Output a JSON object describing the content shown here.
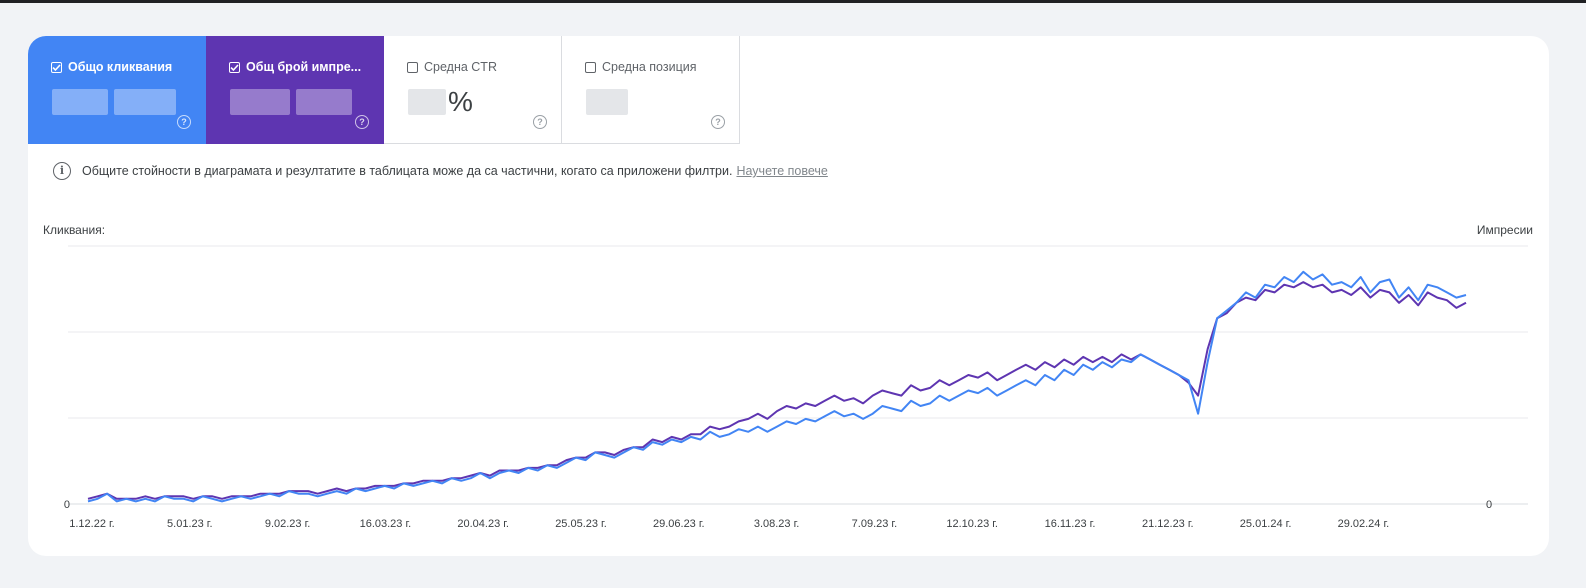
{
  "metrics": [
    {
      "label": "Общо кликвания",
      "value": "",
      "checked": true
    },
    {
      "label": "Общ брой импре...",
      "value": "",
      "checked": true
    },
    {
      "label": "Средна CTR",
      "value": "%",
      "checked": false
    },
    {
      "label": "Средна позиция",
      "value": "",
      "checked": false
    }
  ],
  "notice": {
    "text": "Общите стойности в диаграмата и резултатите в таблицата може да са частични, когато са приложени филтри.",
    "link": "Научете повече"
  },
  "colors": {
    "clicks": "#4285f4",
    "impressions": "#5e35b1",
    "grid": "#e8eaed",
    "tick": "#3c4043"
  },
  "chart_data": {
    "type": "line",
    "left_axis_label": "Кликвания:",
    "right_axis_label": "Импресии",
    "left_axis_ticks": [
      "0"
    ],
    "right_axis_ticks": [
      "0"
    ],
    "x_labels": [
      "1.12.22 г.",
      "5.01.23 г.",
      "9.02.23 г.",
      "16.03.23 г.",
      "20.04.23 г.",
      "25.05.23 г.",
      "29.06.23 г.",
      "3.08.23 г.",
      "7.09.23 г.",
      "12.10.23 г.",
      "16.11.23 г.",
      "21.12.23 г.",
      "25.01.24 г.",
      "29.02.24 г."
    ],
    "y_range": [
      0,
      100
    ],
    "grid": true,
    "series": [
      {
        "key": "clicks",
        "color": "#4285f4",
        "values": [
          1,
          2,
          4,
          1,
          2,
          1,
          2,
          1,
          3,
          2,
          2,
          1,
          3,
          2,
          1,
          2,
          3,
          2,
          3,
          4,
          3,
          5,
          4,
          4,
          3,
          4,
          5,
          4,
          6,
          5,
          6,
          7,
          6,
          8,
          7,
          8,
          9,
          8,
          10,
          9,
          10,
          12,
          10,
          12,
          13,
          12,
          14,
          13,
          15,
          14,
          16,
          18,
          17,
          20,
          19,
          18,
          20,
          22,
          21,
          24,
          23,
          25,
          24,
          26,
          25,
          28,
          26,
          27,
          29,
          28,
          30,
          28,
          30,
          32,
          31,
          33,
          32,
          34,
          36,
          34,
          35,
          33,
          35,
          38,
          37,
          36,
          40,
          38,
          39,
          42,
          40,
          42,
          44,
          43,
          45,
          42,
          44,
          46,
          48,
          46,
          50,
          48,
          52,
          50,
          54,
          52,
          55,
          53,
          56,
          55,
          58,
          56,
          54,
          52,
          50,
          48,
          35,
          55,
          72,
          75,
          78,
          82,
          80,
          85,
          84,
          88,
          86,
          90,
          87,
          89,
          85,
          86,
          84,
          88,
          82,
          86,
          87,
          80,
          84,
          79,
          85,
          84,
          82,
          80,
          81
        ]
      },
      {
        "key": "impressions",
        "color": "#5e35b1",
        "values": [
          2,
          3,
          4,
          2,
          2,
          2,
          3,
          2,
          3,
          3,
          3,
          2,
          3,
          3,
          2,
          3,
          3,
          3,
          4,
          4,
          4,
          5,
          5,
          5,
          4,
          5,
          6,
          5,
          6,
          6,
          7,
          7,
          7,
          8,
          8,
          9,
          9,
          9,
          10,
          10,
          11,
          12,
          11,
          13,
          13,
          13,
          14,
          14,
          15,
          15,
          17,
          18,
          18,
          20,
          20,
          19,
          21,
          22,
          22,
          25,
          24,
          26,
          25,
          27,
          27,
          30,
          29,
          30,
          32,
          33,
          35,
          33,
          36,
          38,
          37,
          39,
          38,
          40,
          42,
          40,
          41,
          39,
          42,
          44,
          43,
          42,
          46,
          44,
          45,
          48,
          46,
          48,
          50,
          49,
          51,
          48,
          50,
          52,
          54,
          52,
          55,
          53,
          56,
          54,
          57,
          55,
          57,
          55,
          58,
          56,
          58,
          56,
          54,
          52,
          50,
          47,
          42,
          60,
          72,
          74,
          78,
          80,
          79,
          83,
          82,
          85,
          84,
          86,
          84,
          85,
          82,
          83,
          81,
          84,
          80,
          83,
          82,
          78,
          81,
          77,
          82,
          80,
          79,
          76,
          78
        ]
      }
    ]
  }
}
